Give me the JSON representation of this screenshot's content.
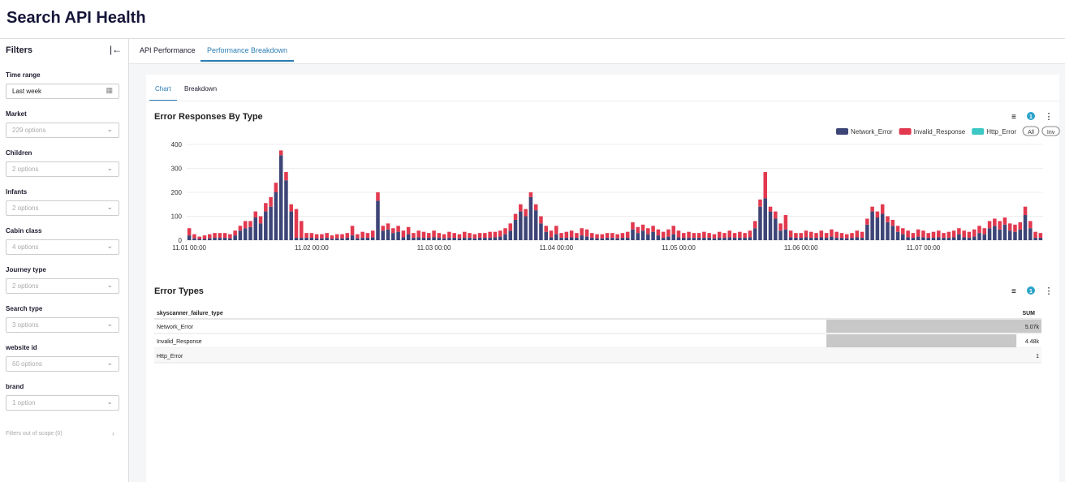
{
  "header": {
    "title": "Search API Health"
  },
  "sidebar": {
    "title": "Filters",
    "filters": [
      {
        "label": "Time range",
        "value": "Last week"
      },
      {
        "label": "Market",
        "value": "229 options"
      },
      {
        "label": "Children",
        "value": "2 options"
      },
      {
        "label": "Infants",
        "value": "2 options"
      },
      {
        "label": "Cabin class",
        "value": "4 options"
      },
      {
        "label": "Journey type",
        "value": "2 options"
      },
      {
        "label": "Search type",
        "value": "3 options"
      },
      {
        "label": "website id",
        "value": "60 options"
      },
      {
        "label": "brand",
        "value": "1 option"
      }
    ],
    "out_of_scope": "Filters out of scope (0)"
  },
  "tabs": [
    "API Performance",
    "Performance Breakdown"
  ],
  "subtabs": [
    "Chart",
    "Breakdown"
  ],
  "chart_data": {
    "type": "stacked-bar",
    "title": "Error Responses By Type",
    "filter_badge": "1",
    "legend_buttons": [
      "All",
      "Inv"
    ],
    "categories": [
      "11.01 00:00",
      null,
      null,
      null,
      null,
      null,
      null,
      null,
      null,
      null,
      null,
      null,
      null,
      null,
      null,
      null,
      null,
      null,
      null,
      null,
      null,
      null,
      null,
      null,
      "11.02 00:00",
      null,
      null,
      null,
      null,
      null,
      null,
      null,
      null,
      null,
      null,
      null,
      null,
      null,
      null,
      null,
      null,
      null,
      null,
      null,
      null,
      null,
      null,
      null,
      "11.03 00:00",
      null,
      null,
      null,
      null,
      null,
      null,
      null,
      null,
      null,
      null,
      null,
      null,
      null,
      null,
      null,
      null,
      null,
      null,
      null,
      null,
      null,
      null,
      null,
      "11.04 00:00",
      null,
      null,
      null,
      null,
      null,
      null,
      null,
      null,
      null,
      null,
      null,
      null,
      null,
      null,
      null,
      null,
      null,
      null,
      null,
      null,
      null,
      null,
      null,
      "11.05 00:00",
      null,
      null,
      null,
      null,
      null,
      null,
      null,
      null,
      null,
      null,
      null,
      null,
      null,
      null,
      null,
      null,
      null,
      null,
      null,
      null,
      null,
      null,
      null,
      "11.06 00:00",
      null,
      null,
      null,
      null,
      null,
      null,
      null,
      null,
      null,
      null,
      null,
      null,
      null,
      null,
      null,
      null,
      null,
      null,
      null,
      null,
      null,
      null,
      null,
      "11.07 00:00",
      null,
      null,
      null,
      null,
      null,
      null,
      null,
      null,
      null,
      null,
      null,
      null,
      null,
      null,
      null,
      null,
      null,
      null,
      null,
      null,
      null,
      null,
      null
    ],
    "series": [
      {
        "name": "Network_Error",
        "color": "#3d4577",
        "values": [
          20,
          8,
          5,
          5,
          8,
          10,
          10,
          10,
          8,
          20,
          40,
          50,
          55,
          95,
          70,
          120,
          140,
          200,
          355,
          250,
          120,
          10,
          10,
          10,
          10,
          8,
          8,
          10,
          6,
          8,
          8,
          10,
          20,
          8,
          10,
          10,
          12,
          165,
          40,
          45,
          30,
          35,
          12,
          25,
          10,
          12,
          10,
          10,
          12,
          10,
          8,
          10,
          10,
          8,
          10,
          10,
          8,
          10,
          10,
          10,
          12,
          15,
          25,
          40,
          85,
          120,
          100,
          180,
          125,
          70,
          35,
          12,
          25,
          10,
          10,
          12,
          10,
          20,
          15,
          10,
          8,
          8,
          10,
          10,
          8,
          10,
          10,
          45,
          30,
          40,
          25,
          35,
          20,
          10,
          15,
          25,
          12,
          10,
          10,
          10,
          10,
          10,
          10,
          8,
          10,
          10,
          12,
          10,
          10,
          10,
          12,
          50,
          140,
          175,
          120,
          90,
          40,
          45,
          12,
          10,
          10,
          12,
          10,
          10,
          12,
          10,
          15,
          10,
          10,
          8,
          10,
          12,
          10,
          65,
          120,
          95,
          110,
          75,
          60,
          35,
          25,
          12,
          10,
          15,
          12,
          10,
          10,
          12,
          10,
          10,
          12,
          25,
          12,
          10,
          15,
          30,
          25,
          50,
          60,
          45,
          65,
          40,
          35,
          45,
          105,
          50,
          10,
          10
        ]
      },
      {
        "name": "Invalid_Response",
        "color": "#e2394f",
        "values": [
          30,
          17,
          10,
          15,
          17,
          20,
          20,
          20,
          17,
          20,
          20,
          30,
          25,
          25,
          30,
          35,
          40,
          40,
          20,
          35,
          30,
          120,
          70,
          20,
          20,
          17,
          17,
          20,
          14,
          17,
          17,
          20,
          40,
          17,
          25,
          20,
          28,
          35,
          20,
          25,
          20,
          25,
          28,
          30,
          20,
          28,
          25,
          20,
          28,
          20,
          17,
          25,
          20,
          17,
          25,
          20,
          17,
          20,
          20,
          25,
          23,
          25,
          25,
          30,
          25,
          30,
          30,
          20,
          25,
          30,
          25,
          28,
          35,
          20,
          25,
          28,
          20,
          30,
          30,
          20,
          17,
          17,
          20,
          20,
          17,
          20,
          25,
          30,
          25,
          25,
          25,
          25,
          25,
          25,
          30,
          35,
          28,
          20,
          25,
          20,
          20,
          25,
          20,
          17,
          25,
          20,
          28,
          20,
          25,
          20,
          28,
          30,
          30,
          110,
          20,
          30,
          30,
          60,
          28,
          20,
          20,
          28,
          25,
          20,
          28,
          20,
          30,
          25,
          20,
          17,
          20,
          28,
          25,
          25,
          20,
          25,
          40,
          25,
          25,
          25,
          25,
          28,
          20,
          30,
          28,
          20,
          25,
          28,
          20,
          25,
          28,
          25,
          28,
          25,
          30,
          30,
          25,
          30,
          30,
          35,
          30,
          30,
          30,
          30,
          35,
          30,
          25,
          20
        ]
      },
      {
        "name": "Http_Error",
        "color": "#3cc8c4"
      }
    ],
    "ylim": [
      0,
      400
    ],
    "yticks": [
      0,
      100,
      200,
      300,
      400
    ],
    "grid": true
  },
  "table": {
    "title": "Error Types",
    "filter_badge": "1",
    "columns": [
      "skyscanner_failure_type",
      "SUM"
    ],
    "rows": [
      [
        "Network_Error",
        "5.07k"
      ],
      [
        "Invalid_Response",
        "4.48k"
      ],
      [
        "Http_Error",
        "1"
      ]
    ],
    "sum_values": [
      5070,
      4480,
      1
    ],
    "bar_color": "#c8c8c8"
  }
}
